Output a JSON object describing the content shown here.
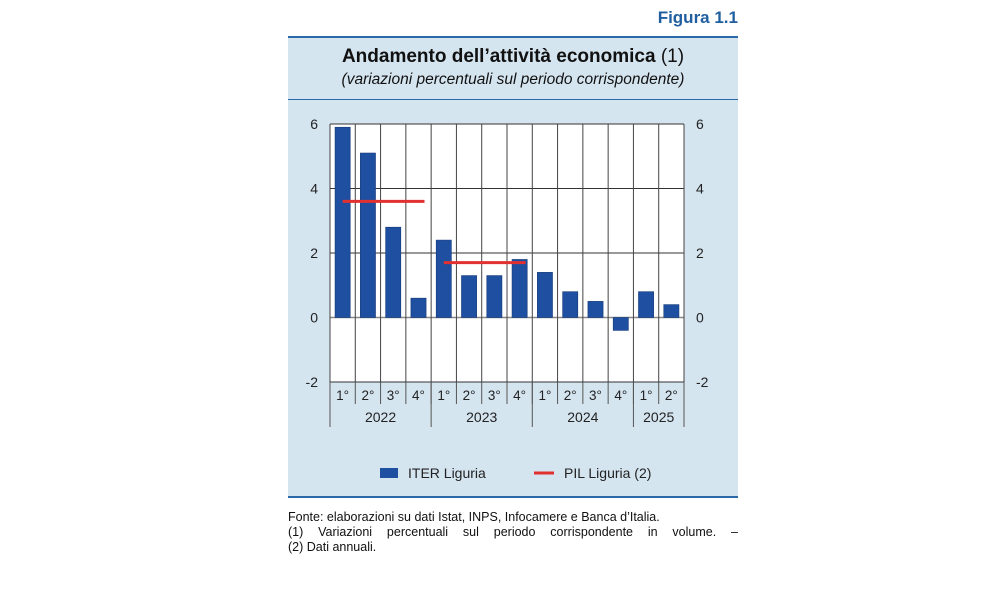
{
  "figure_label": "Figura 1.1",
  "title": "Andamento dell’attività economica",
  "title_note": "(1)",
  "subtitle": "(variazioni percentuali sul periodo corrispondente)",
  "chart_data": {
    "type": "bar",
    "categories": [
      "1°",
      "2°",
      "3°",
      "4°",
      "1°",
      "2°",
      "3°",
      "4°",
      "1°",
      "2°",
      "3°",
      "4°",
      "1°",
      "2°"
    ],
    "years": [
      {
        "label": "2022",
        "quarters": 4
      },
      {
        "label": "2023",
        "quarters": 4
      },
      {
        "label": "2024",
        "quarters": 4
      },
      {
        "label": "2025",
        "quarters": 2
      }
    ],
    "series": [
      {
        "name": "ITER Liguria",
        "type": "bar",
        "color": "#1f4fa0",
        "values": [
          5.9,
          5.1,
          2.8,
          0.6,
          2.4,
          1.3,
          1.3,
          1.8,
          1.4,
          0.8,
          0.5,
          -0.4,
          0.8,
          0.4
        ]
      },
      {
        "name": "PIL Liguria (2)",
        "type": "annual-line",
        "color": "#e03030",
        "segments": [
          {
            "year": "2022",
            "value": 3.6
          },
          {
            "year": "2023",
            "value": 1.7
          }
        ]
      }
    ],
    "ylim": [
      -2,
      6
    ],
    "yticks": [
      "6",
      "4",
      "2",
      "0",
      "-2"
    ],
    "grid": true,
    "legend_position": "bottom"
  },
  "notes": [
    "Fonte: elaborazioni su dati Istat, INPS, Infocamere e Banca d’Italia.",
    "(1) Variazioni percentuali sul periodo corrispondente in volume. –",
    "(2) Dati annuali."
  ]
}
